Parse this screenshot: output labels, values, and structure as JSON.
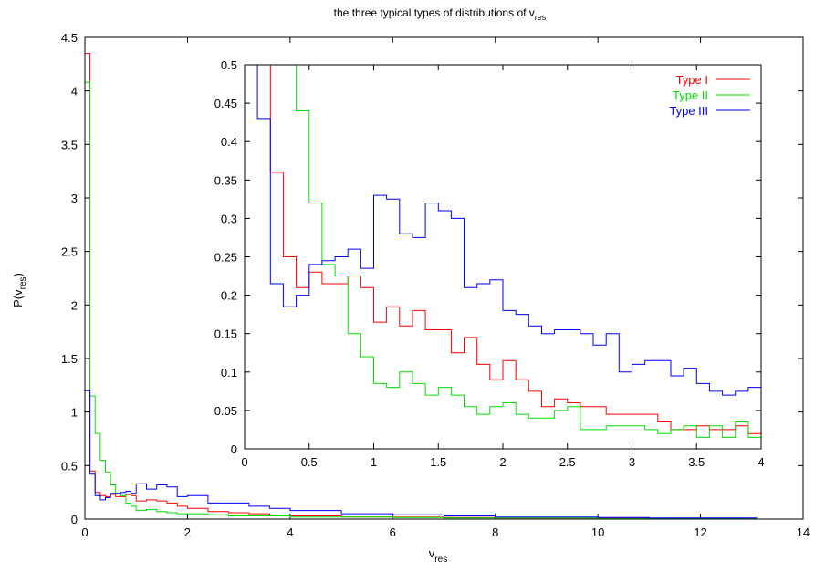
{
  "chart_data": [
    {
      "type": "line",
      "panel": "main",
      "title": "the three typical types of distributions of v",
      "title_sub": "res",
      "xlabel": "v",
      "xlabel_sub": "res",
      "ylabel": "P(v",
      "ylabel_sub": "res",
      "ylabel_end": ")",
      "xlim": [
        0,
        14
      ],
      "ylim": [
        0,
        4.5
      ],
      "xticks": [
        "0",
        "2",
        "4",
        "6",
        "8",
        "10",
        "12",
        "14"
      ],
      "yticks": [
        "0",
        "0.5",
        "1",
        "1.5",
        "2",
        "2.5",
        "3",
        "3.5",
        "4",
        "4.5"
      ],
      "series": [
        {
          "name": "Type I",
          "color": "#ff0000",
          "x": [
            0,
            0.1,
            0.2,
            0.3,
            0.4,
            0.5,
            0.6,
            0.7,
            0.8,
            0.9,
            1.0,
            1.2,
            1.4,
            1.6,
            1.8,
            2.0,
            2.4,
            2.8,
            3.2,
            3.6,
            4.0,
            5,
            6,
            7,
            8,
            9,
            10,
            11,
            12,
            13
          ],
          "y": [
            4.35,
            0.45,
            0.25,
            0.22,
            0.21,
            0.23,
            0.21,
            0.21,
            0.23,
            0.22,
            0.17,
            0.18,
            0.17,
            0.15,
            0.12,
            0.1,
            0.07,
            0.06,
            0.05,
            0.03,
            0.03,
            0.02,
            0.02,
            0.015,
            0.01,
            0.01,
            0.01,
            0.005,
            0.005,
            0.005
          ]
        },
        {
          "name": "Type II",
          "color": "#00e000",
          "x": [
            0,
            0.1,
            0.2,
            0.3,
            0.4,
            0.5,
            0.6,
            0.7,
            0.8,
            0.9,
            1.0,
            1.2,
            1.4,
            1.6,
            1.8,
            2.0,
            2.4,
            2.8,
            3.2,
            3.6,
            4.0,
            5,
            6,
            7,
            8,
            9,
            10,
            11,
            12,
            13
          ],
          "y": [
            4.08,
            1.15,
            0.8,
            0.55,
            0.44,
            0.32,
            0.24,
            0.22,
            0.15,
            0.12,
            0.08,
            0.09,
            0.07,
            0.06,
            0.05,
            0.05,
            0.04,
            0.03,
            0.03,
            0.03,
            0.02,
            0.02,
            0.015,
            0.01,
            0.01,
            0.01,
            0.005,
            0.005,
            0.005,
            0.005
          ]
        },
        {
          "name": "Type III",
          "color": "#0000ff",
          "x": [
            0,
            0.1,
            0.2,
            0.3,
            0.4,
            0.5,
            0.6,
            0.7,
            0.8,
            0.9,
            1.0,
            1.2,
            1.4,
            1.6,
            1.8,
            2.0,
            2.4,
            2.8,
            3.2,
            3.6,
            4.0,
            5,
            6,
            7,
            8,
            9,
            10,
            11,
            12,
            13
          ],
          "y": [
            1.2,
            0.42,
            0.22,
            0.18,
            0.2,
            0.24,
            0.24,
            0.25,
            0.26,
            0.24,
            0.33,
            0.28,
            0.32,
            0.3,
            0.21,
            0.22,
            0.15,
            0.15,
            0.12,
            0.1,
            0.08,
            0.05,
            0.04,
            0.03,
            0.02,
            0.02,
            0.015,
            0.01,
            0.01,
            0.01
          ]
        }
      ]
    },
    {
      "type": "line",
      "panel": "inset",
      "xlim": [
        0,
        4
      ],
      "ylim": [
        0,
        0.5
      ],
      "xticks": [
        "0",
        "0.5",
        "1",
        "1.5",
        "2",
        "2.5",
        "3",
        "3.5",
        "4"
      ],
      "yticks": [
        "0",
        "0.05",
        "0.1",
        "0.15",
        "0.2",
        "0.25",
        "0.3",
        "0.35",
        "0.4",
        "0.45",
        "0.5"
      ],
      "legend": "top-right",
      "bin_width": 0.1,
      "series": [
        {
          "name": "Type I",
          "color": "#ff0000",
          "x": [
            0.0,
            0.1,
            0.2,
            0.3,
            0.4,
            0.5,
            0.6,
            0.7,
            0.8,
            0.9,
            1.0,
            1.1,
            1.2,
            1.3,
            1.4,
            1.5,
            1.6,
            1.7,
            1.8,
            1.9,
            2.0,
            2.1,
            2.2,
            2.3,
            2.4,
            2.5,
            2.6,
            2.7,
            2.8,
            2.9,
            3.0,
            3.1,
            3.2,
            3.3,
            3.4,
            3.5,
            3.6,
            3.7,
            3.8,
            3.9
          ],
          "y": [
            0.5,
            0.5,
            0.36,
            0.25,
            0.21,
            0.23,
            0.215,
            0.215,
            0.225,
            0.21,
            0.165,
            0.185,
            0.16,
            0.18,
            0.155,
            0.155,
            0.125,
            0.145,
            0.11,
            0.09,
            0.115,
            0.09,
            0.075,
            0.055,
            0.065,
            0.06,
            0.055,
            0.055,
            0.045,
            0.045,
            0.045,
            0.045,
            0.035,
            0.025,
            0.025,
            0.03,
            0.025,
            0.025,
            0.03,
            0.02
          ]
        },
        {
          "name": "Type II",
          "color": "#00e000",
          "x": [
            0.0,
            0.1,
            0.2,
            0.3,
            0.4,
            0.5,
            0.6,
            0.7,
            0.8,
            0.9,
            1.0,
            1.1,
            1.2,
            1.3,
            1.4,
            1.5,
            1.6,
            1.7,
            1.8,
            1.9,
            2.0,
            2.1,
            2.2,
            2.3,
            2.4,
            2.5,
            2.6,
            2.7,
            2.8,
            2.9,
            3.0,
            3.1,
            3.2,
            3.3,
            3.4,
            3.5,
            3.6,
            3.7,
            3.8,
            3.9
          ],
          "y": [
            0.5,
            0.5,
            0.5,
            0.5,
            0.44,
            0.32,
            0.24,
            0.225,
            0.15,
            0.12,
            0.085,
            0.08,
            0.1,
            0.085,
            0.07,
            0.08,
            0.07,
            0.055,
            0.045,
            0.055,
            0.06,
            0.045,
            0.04,
            0.04,
            0.05,
            0.055,
            0.025,
            0.025,
            0.03,
            0.03,
            0.03,
            0.025,
            0.02,
            0.025,
            0.03,
            0.015,
            0.03,
            0.015,
            0.035,
            0.015
          ]
        },
        {
          "name": "Type III",
          "color": "#0000ff",
          "x": [
            0.0,
            0.1,
            0.2,
            0.3,
            0.4,
            0.5,
            0.6,
            0.7,
            0.8,
            0.9,
            1.0,
            1.1,
            1.2,
            1.3,
            1.4,
            1.5,
            1.6,
            1.7,
            1.8,
            1.9,
            2.0,
            2.1,
            2.2,
            2.3,
            2.4,
            2.5,
            2.6,
            2.7,
            2.8,
            2.9,
            3.0,
            3.1,
            3.2,
            3.3,
            3.4,
            3.5,
            3.6,
            3.7,
            3.8,
            3.9
          ],
          "y": [
            0.5,
            0.43,
            0.215,
            0.185,
            0.2,
            0.24,
            0.245,
            0.25,
            0.26,
            0.235,
            0.33,
            0.325,
            0.28,
            0.275,
            0.32,
            0.31,
            0.3,
            0.21,
            0.215,
            0.22,
            0.18,
            0.175,
            0.16,
            0.15,
            0.155,
            0.155,
            0.15,
            0.135,
            0.15,
            0.1,
            0.11,
            0.115,
            0.115,
            0.095,
            0.105,
            0.085,
            0.075,
            0.07,
            0.075,
            0.08
          ]
        }
      ]
    }
  ]
}
